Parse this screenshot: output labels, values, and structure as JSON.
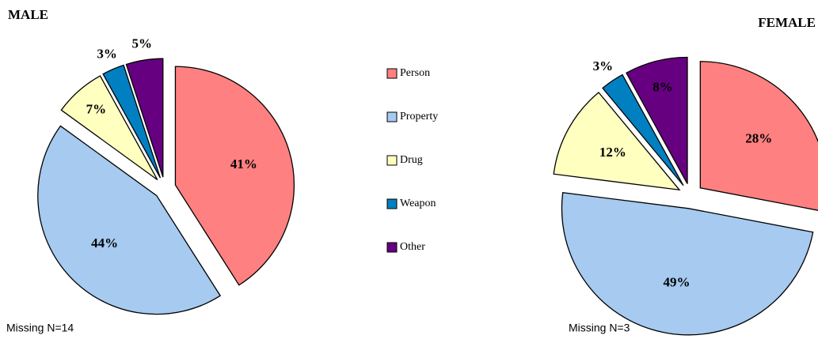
{
  "chart_data": [
    {
      "type": "pie",
      "title": "MALE",
      "note": "Missing N=14",
      "categories": [
        "Person",
        "Property",
        "Drug",
        "Weapon",
        "Other"
      ],
      "values": [
        41,
        44,
        7,
        3,
        5
      ],
      "value_labels": [
        "41%",
        "44%",
        "7%",
        "3%",
        "5%"
      ],
      "colors": [
        "#FF8080",
        "#A6CAF0",
        "#FFFFC0",
        "#0080C0",
        "#660080"
      ],
      "legend": "center"
    },
    {
      "type": "pie",
      "title": "FEMALE",
      "note": "Missing N=3",
      "categories": [
        "Person",
        "Property",
        "Drug",
        "Weapon",
        "Other"
      ],
      "values": [
        28,
        49,
        12,
        3,
        8
      ],
      "value_labels": [
        "28%",
        "49%",
        "12%",
        "3%",
        "8%"
      ],
      "colors": [
        "#FF8080",
        "#A6CAF0",
        "#FFFFC0",
        "#0080C0",
        "#660080"
      ]
    }
  ]
}
